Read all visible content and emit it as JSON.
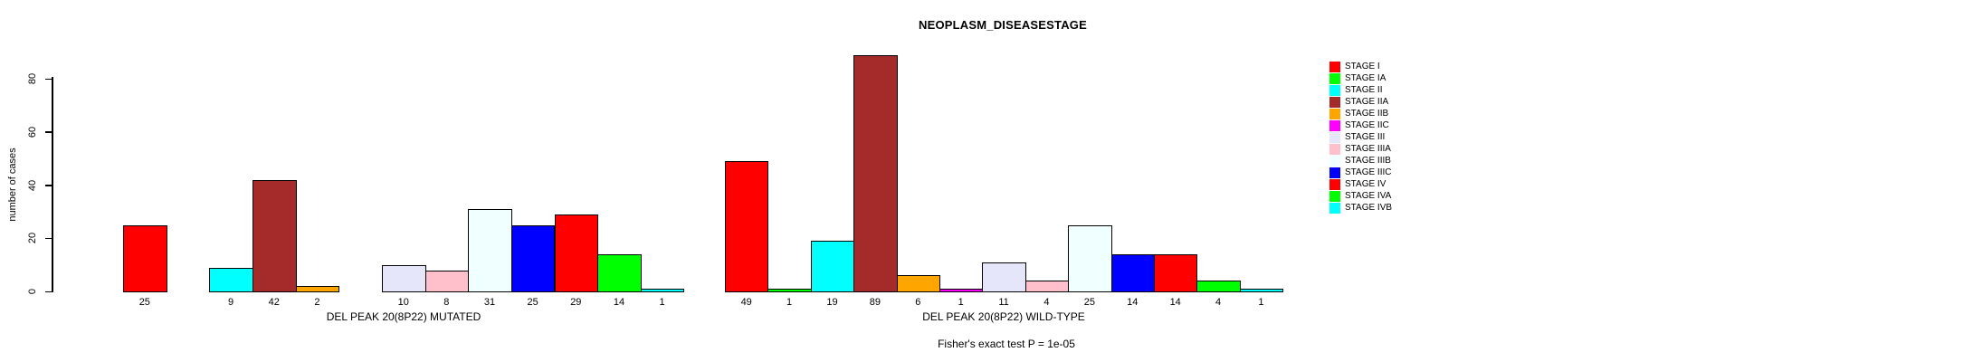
{
  "title": "NEOPLASM_DISEASESTAGE",
  "y_axis": {
    "label": "number of cases",
    "ticks": [
      0,
      20,
      40,
      60,
      80
    ],
    "range": [
      0,
      80
    ]
  },
  "footer": "Fisher's exact test P = 1e-05",
  "legend": {
    "position": "right",
    "entries": [
      {
        "label": "STAGE I",
        "color": "#FF0000"
      },
      {
        "label": "STAGE IA",
        "color": "#00FF00"
      },
      {
        "label": "STAGE II",
        "color": "#00FFFF"
      },
      {
        "label": "STAGE IIA",
        "color": "#A52A2A"
      },
      {
        "label": "STAGE IIB",
        "color": "#FFA500"
      },
      {
        "label": "STAGE IIC",
        "color": "#FF00FF"
      },
      {
        "label": "STAGE III",
        "color": "#E6E6FA"
      },
      {
        "label": "STAGE IIIA",
        "color": "#FFC0CB"
      },
      {
        "label": "STAGE IIIB",
        "color": "#F0FFFF"
      },
      {
        "label": "STAGE IIIC",
        "color": "#0000FF"
      },
      {
        "label": "STAGE IV",
        "color": "#FF0000"
      },
      {
        "label": "STAGE IVA",
        "color": "#00FF00"
      },
      {
        "label": "STAGE IVB",
        "color": "#00FFFF"
      }
    ]
  },
  "chart_data": [
    {
      "type": "bar",
      "title": "NEOPLASM_DISEASESTAGE",
      "xlabel": "DEL PEAK 20(8P22) MUTATED",
      "ylabel": "number of cases",
      "ylim": [
        0,
        80
      ],
      "grid": false,
      "legend_position": "right",
      "categories": [
        "STAGE I",
        "STAGE IA",
        "STAGE II",
        "STAGE IIA",
        "STAGE IIB",
        "STAGE IIC",
        "STAGE III",
        "STAGE IIIA",
        "STAGE IIIB",
        "STAGE IIIC",
        "STAGE IV",
        "STAGE IVA",
        "STAGE IVB"
      ],
      "values": [
        25,
        0,
        9,
        42,
        2,
        0,
        10,
        8,
        31,
        25,
        29,
        14,
        1
      ],
      "bar_labels": [
        "25",
        "",
        "9",
        "42",
        "2",
        "",
        "10",
        "8",
        "31",
        "25",
        "29",
        "14",
        "1"
      ]
    },
    {
      "type": "bar",
      "title": "NEOPLASM_DISEASESTAGE",
      "xlabel": "DEL PEAK 20(8P22) WILD-TYPE",
      "ylabel": "number of cases",
      "ylim": [
        0,
        80
      ],
      "grid": false,
      "legend_position": "right",
      "categories": [
        "STAGE I",
        "STAGE IA",
        "STAGE II",
        "STAGE IIA",
        "STAGE IIB",
        "STAGE IIC",
        "STAGE III",
        "STAGE IIIA",
        "STAGE IIIB",
        "STAGE IIIC",
        "STAGE IV",
        "STAGE IVA",
        "STAGE IVB"
      ],
      "values": [
        49,
        1,
        19,
        89,
        6,
        1,
        11,
        4,
        25,
        14,
        14,
        4,
        1
      ],
      "bar_labels": [
        "49",
        "1",
        "19",
        "89",
        "6",
        "1",
        "11",
        "4",
        "25",
        "14",
        "14",
        "4",
        "1"
      ]
    }
  ]
}
